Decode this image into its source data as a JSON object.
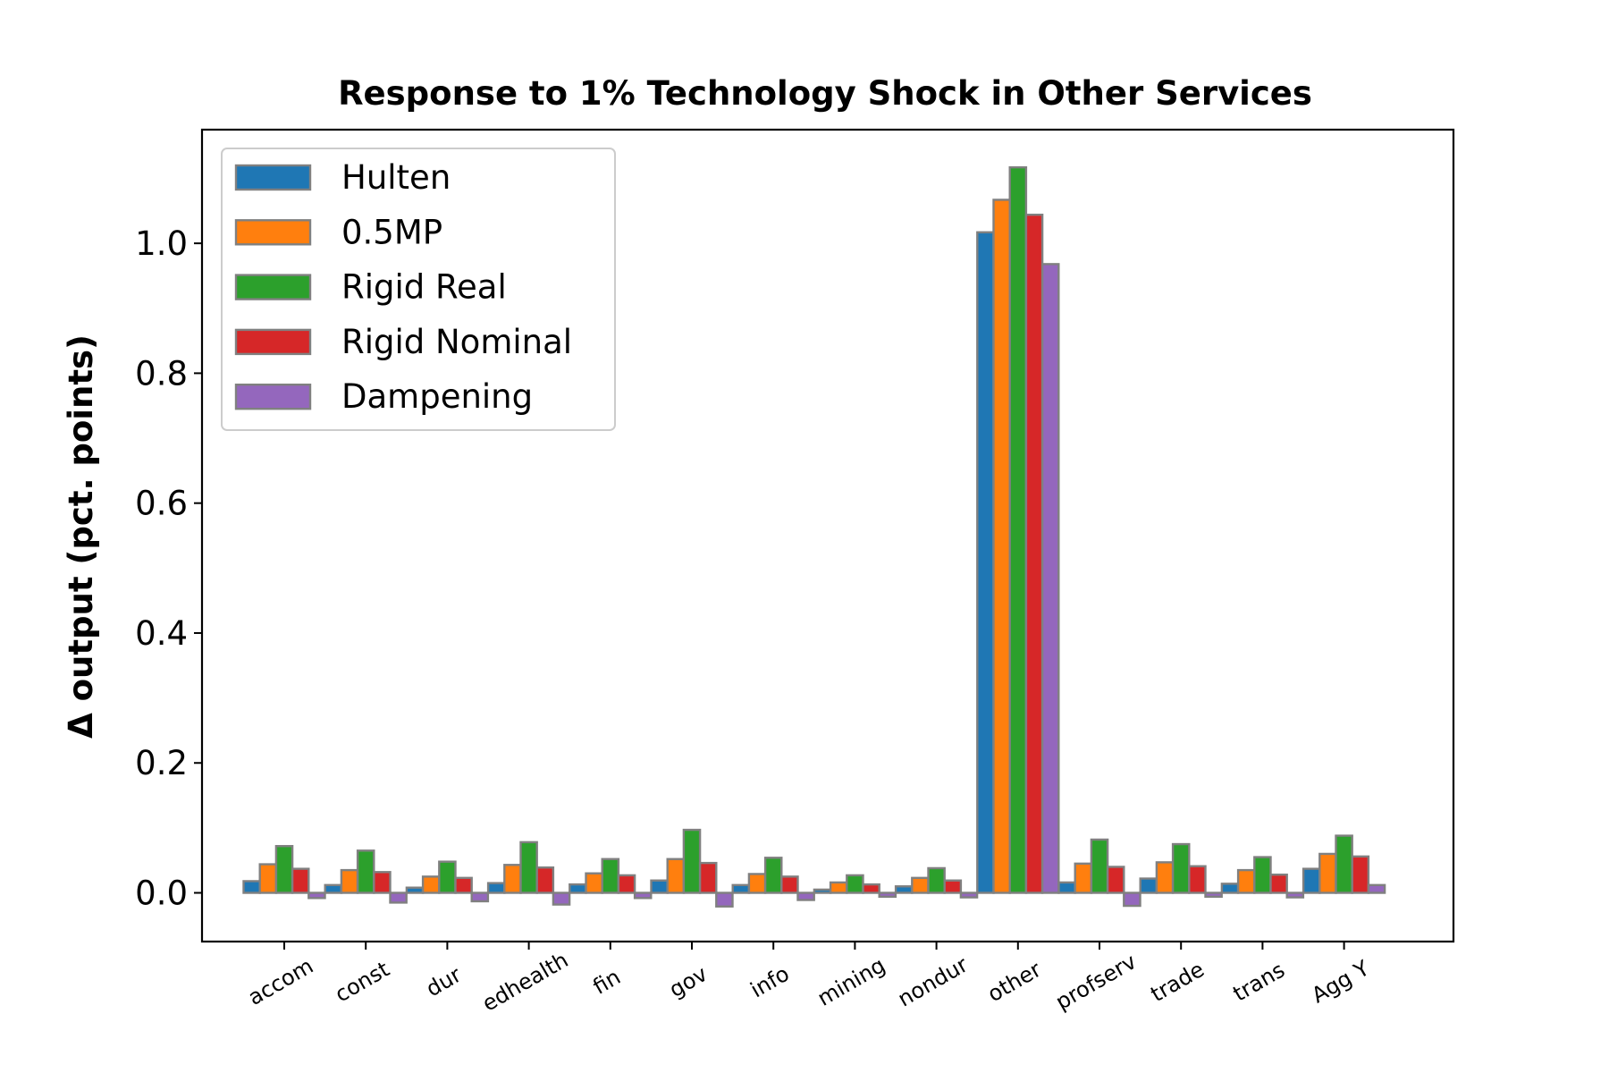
{
  "chart_data": {
    "type": "bar",
    "title": "Response to 1% Technology Shock in Other Services",
    "xlabel": "",
    "ylabel": "Δ output (pct. points)",
    "ylim": [
      -0.075,
      1.175
    ],
    "yticks": [
      0.0,
      0.2,
      0.4,
      0.6,
      0.8,
      1.0
    ],
    "ytick_labels": [
      "0.0",
      "0.2",
      "0.4",
      "0.6",
      "0.8",
      "1.0"
    ],
    "grid": false,
    "legend_position": "top-left",
    "bar_edge_color": "#808080",
    "categories": [
      "accom",
      "const",
      "dur",
      "edhealth",
      "fin",
      "gov",
      "info",
      "mining",
      "nondur",
      "other",
      "profserv",
      "trade",
      "trans",
      "Agg Y"
    ],
    "series": [
      {
        "name": "Hulten",
        "color": "#1f77b4",
        "values": [
          0.018,
          0.012,
          0.008,
          0.015,
          0.013,
          0.019,
          0.012,
          0.005,
          0.01,
          1.017,
          0.016,
          0.022,
          0.014,
          0.037
        ]
      },
      {
        "name": "0.5MP",
        "color": "#ff7f0e",
        "values": [
          0.044,
          0.035,
          0.025,
          0.043,
          0.03,
          0.052,
          0.029,
          0.016,
          0.023,
          1.067,
          0.045,
          0.047,
          0.035,
          0.06
        ]
      },
      {
        "name": "Rigid Real",
        "color": "#2ca02c",
        "values": [
          0.072,
          0.065,
          0.048,
          0.078,
          0.052,
          0.097,
          0.054,
          0.027,
          0.038,
          1.117,
          0.082,
          0.075,
          0.055,
          0.088
        ]
      },
      {
        "name": "Rigid Nominal",
        "color": "#d62728",
        "values": [
          0.037,
          0.032,
          0.023,
          0.039,
          0.027,
          0.046,
          0.025,
          0.013,
          0.019,
          1.044,
          0.04,
          0.041,
          0.028,
          0.056
        ]
      },
      {
        "name": "Dampening",
        "color": "#9467bd",
        "values": [
          -0.008,
          -0.015,
          -0.013,
          -0.018,
          -0.008,
          -0.021,
          -0.011,
          -0.006,
          -0.007,
          0.968,
          -0.02,
          -0.006,
          -0.007,
          0.012
        ]
      }
    ]
  }
}
